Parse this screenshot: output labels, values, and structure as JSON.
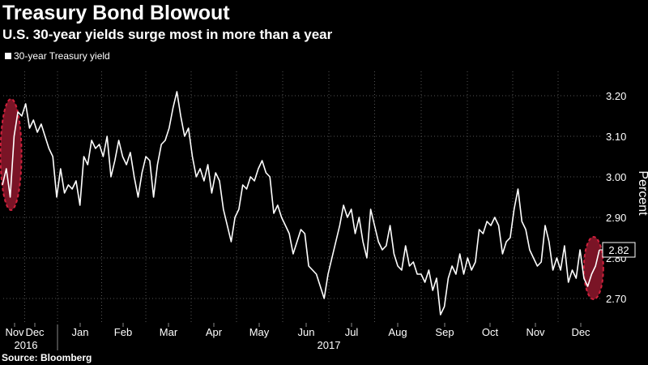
{
  "title": "Treasury Bond Blowout",
  "subtitle": "U.S. 30-year yields surge most in more than a year",
  "source": "Source: Bloomberg",
  "chart_data": {
    "type": "line",
    "series": [
      {
        "name": "30-year Treasury yield",
        "color": "#ffffff",
        "values": [
          2.98,
          3.02,
          2.95,
          3.1,
          3.16,
          3.15,
          3.18,
          3.12,
          3.14,
          3.11,
          3.13,
          3.1,
          3.07,
          3.05,
          2.95,
          3.02,
          2.96,
          2.98,
          2.97,
          2.99,
          2.93,
          3.05,
          3.03,
          3.09,
          3.07,
          3.08,
          3.05,
          3.1,
          3.0,
          3.04,
          3.09,
          3.05,
          3.03,
          3.06,
          3.0,
          2.95,
          3.01,
          3.05,
          3.04,
          2.95,
          3.03,
          3.08,
          3.09,
          3.12,
          3.17,
          3.21,
          3.15,
          3.1,
          3.12,
          3.05,
          3.0,
          3.02,
          2.99,
          3.03,
          2.96,
          3.01,
          2.99,
          2.92,
          2.88,
          2.84,
          2.9,
          2.92,
          2.98,
          2.97,
          3.0,
          2.99,
          3.02,
          3.04,
          3.01,
          3.0,
          2.91,
          2.93,
          2.9,
          2.88,
          2.86,
          2.81,
          2.84,
          2.87,
          2.86,
          2.78,
          2.77,
          2.76,
          2.73,
          2.7,
          2.76,
          2.8,
          2.84,
          2.88,
          2.93,
          2.9,
          2.92,
          2.86,
          2.9,
          2.84,
          2.8,
          2.92,
          2.88,
          2.84,
          2.82,
          2.83,
          2.88,
          2.81,
          2.78,
          2.77,
          2.83,
          2.78,
          2.79,
          2.76,
          2.76,
          2.74,
          2.77,
          2.72,
          2.75,
          2.66,
          2.68,
          2.75,
          2.78,
          2.76,
          2.81,
          2.76,
          2.8,
          2.77,
          2.79,
          2.87,
          2.86,
          2.89,
          2.88,
          2.9,
          2.88,
          2.81,
          2.84,
          2.85,
          2.92,
          2.97,
          2.89,
          2.87,
          2.82,
          2.8,
          2.78,
          2.79,
          2.88,
          2.84,
          2.77,
          2.8,
          2.77,
          2.83,
          2.74,
          2.77,
          2.75,
          2.82,
          2.75,
          2.73,
          2.76,
          2.78,
          2.82
        ]
      }
    ],
    "x_ticks": [
      "Nov",
      "Dec",
      "Jan",
      "Feb",
      "Mar",
      "Apr",
      "May",
      "Jun",
      "Jul",
      "Aug",
      "Sep",
      "Oct",
      "Nov",
      "Dec"
    ],
    "year_labels": [
      "2016",
      "2017"
    ],
    "ylabel": "Percent",
    "y_ticks": [
      "2.70",
      "2.80",
      "2.90",
      "3.00",
      "3.10",
      "3.20"
    ],
    "ylim": [
      2.64,
      3.26
    ],
    "last_value_label": "2.82",
    "highlights": [
      "start",
      "end"
    ],
    "grid": true,
    "grid_style": "dotted",
    "y_axis_side": "right",
    "legend_position": "top-left",
    "colors": {
      "background": "#000000",
      "line": "#ffffff",
      "highlight_fill": "#7a1426",
      "highlight_stroke": "#d0213c",
      "grid": "#555555"
    }
  }
}
